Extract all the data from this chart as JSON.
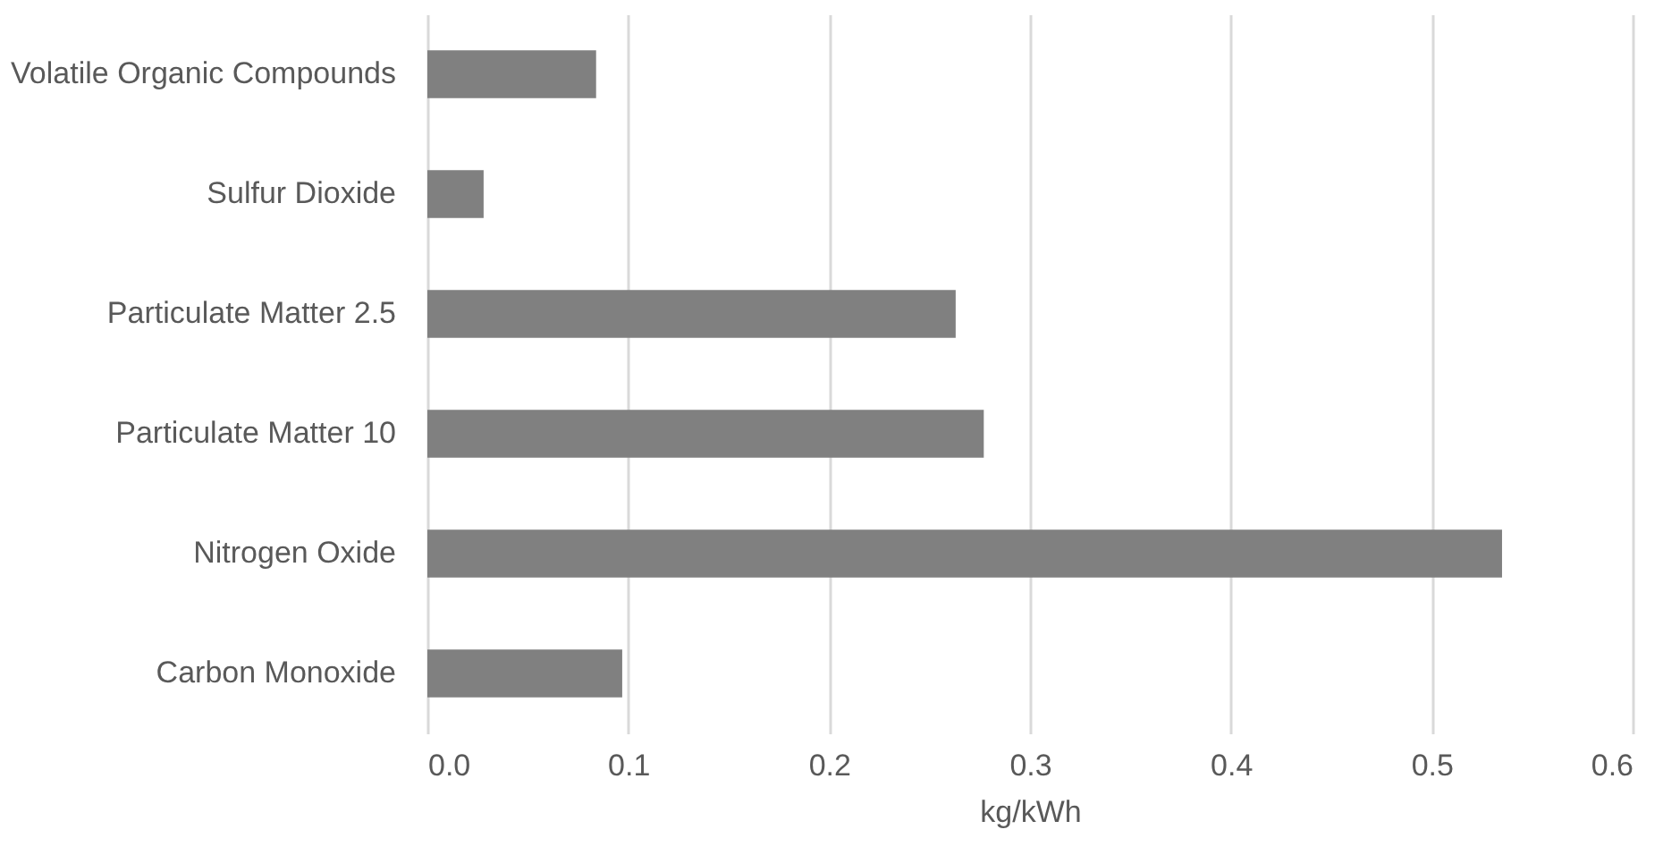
{
  "chart_data": {
    "type": "bar",
    "orientation": "horizontal",
    "xlabel": "kg/kWh",
    "categories": [
      "Volatile Organic Compounds",
      "Sulfur Dioxide",
      "Particulate Matter 2.5",
      "Particulate Matter 10",
      "Nitrogen Oxide",
      "Carbon Monoxide"
    ],
    "values": [
      0.084,
      0.028,
      0.263,
      0.277,
      0.535,
      0.097
    ],
    "color": "#808080",
    "xlim": [
      0,
      0.6
    ],
    "xticks": [
      {
        "value": 0,
        "label": "0.0"
      },
      0.1,
      0.2,
      0.3,
      0.4,
      0.5,
      0.6
    ],
    "grid": "x"
  }
}
